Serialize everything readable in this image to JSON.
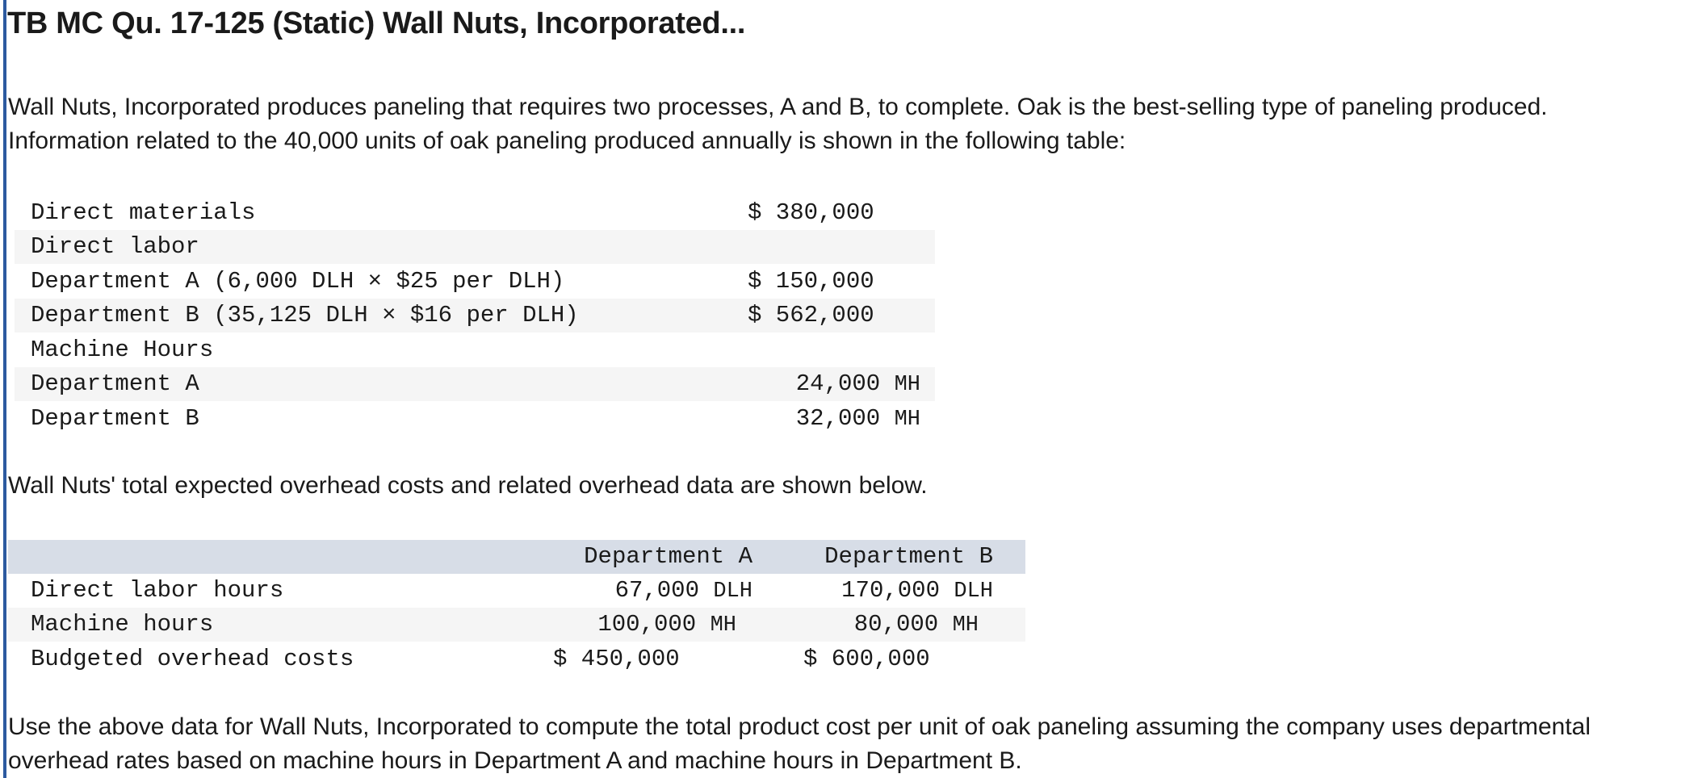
{
  "title": "TB MC Qu. 17-125 (Static) Wall Nuts, Incorporated...",
  "intro": {
    "line1": "Wall Nuts, Incorporated produces paneling that requires two processes, A and B, to complete. Oak is the best-selling type of paneling produced.",
    "line2": "Information related to the 40,000 units of oak paneling produced annually is shown in the following table:"
  },
  "table1": {
    "rows": [
      {
        "label": "Direct materials",
        "value": "$ 380,000"
      },
      {
        "label": "Direct labor",
        "value": ""
      },
      {
        "label": "Department A (6,000 DLH × $25 per DLH)",
        "value": "$ 150,000"
      },
      {
        "label": "Department B (35,125 DLH × $16 per DLH)",
        "value": "$ 562,000"
      },
      {
        "label": "Machine Hours",
        "value": ""
      },
      {
        "label": "Department A",
        "value": "24,000",
        "unit": "MH"
      },
      {
        "label": "Department B",
        "value": "32,000",
        "unit": "MH"
      }
    ]
  },
  "middle_text": "Wall Nuts' total expected overhead costs and related overhead data are shown below.",
  "table2": {
    "headers": [
      "",
      "Department A",
      "Department B"
    ],
    "rows": [
      {
        "label": "Direct labor hours",
        "a": "67,000",
        "a_unit": "DLH",
        "b": "170,000",
        "b_unit": "DLH"
      },
      {
        "label": "Machine hours",
        "a": "100,000",
        "a_unit": "MH",
        "b": "80,000",
        "b_unit": "MH"
      },
      {
        "label": "Budgeted overhead costs",
        "a": "$ 450,000",
        "a_unit": "",
        "b": "$ 600,000",
        "b_unit": ""
      }
    ]
  },
  "question": {
    "line1": "Use the above data for Wall Nuts, Incorporated to compute the total product cost per unit of oak paneling assuming the company uses departmental",
    "line2": "overhead rates based on machine hours in Department A and machine hours in Department B."
  },
  "colors": {
    "accent_rule": "#2c5aa0",
    "header_bg": "#d7dde7",
    "stripe_bg": "#f5f5f5"
  }
}
